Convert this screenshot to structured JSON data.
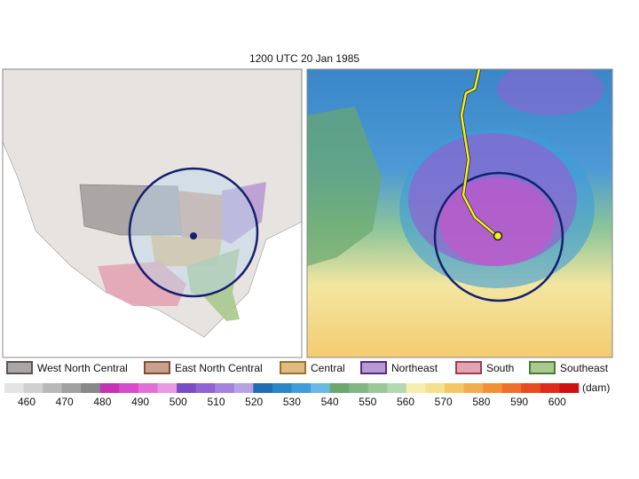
{
  "title": "1200 UTC 20 Jan 1985",
  "legend": [
    {
      "label": "West North Central",
      "color": "#aaa6a6",
      "border": "#555555"
    },
    {
      "label": "East North Central",
      "color": "#c9a08a",
      "border": "#7a5040"
    },
    {
      "label": "Central",
      "color": "#e0bb80",
      "border": "#9a7030"
    },
    {
      "label": "Northeast",
      "color": "#b89ad2",
      "border": "#5e2a80"
    },
    {
      "label": "South",
      "color": "#e3a3b3",
      "border": "#9a4050"
    },
    {
      "label": "Southeast",
      "color": "#a9c98f",
      "border": "#4e7a30"
    }
  ],
  "colorbar": {
    "unit": "(dam)",
    "ticks": [
      460,
      470,
      480,
      490,
      500,
      510,
      520,
      530,
      540,
      550,
      560,
      570,
      580,
      590,
      600
    ],
    "colors": [
      "#e4e4e4",
      "#d0d0d0",
      "#b8b8b8",
      "#a0a0a0",
      "#888888",
      "#c632b6",
      "#d84ccb",
      "#e070d8",
      "#e899e2",
      "#7a4cc4",
      "#9062d2",
      "#a482dc",
      "#b9a2e4",
      "#1f6db3",
      "#2b86c6",
      "#3e9cd8",
      "#6bb7e4",
      "#6aa86c",
      "#80b882",
      "#9ac89a",
      "#b4d8b2",
      "#f4efac",
      "#f5e08c",
      "#f3c862",
      "#f2ad4c",
      "#f29134",
      "#f0702a",
      "#e84c22",
      "#dd2c18",
      "#d01010"
    ]
  }
}
